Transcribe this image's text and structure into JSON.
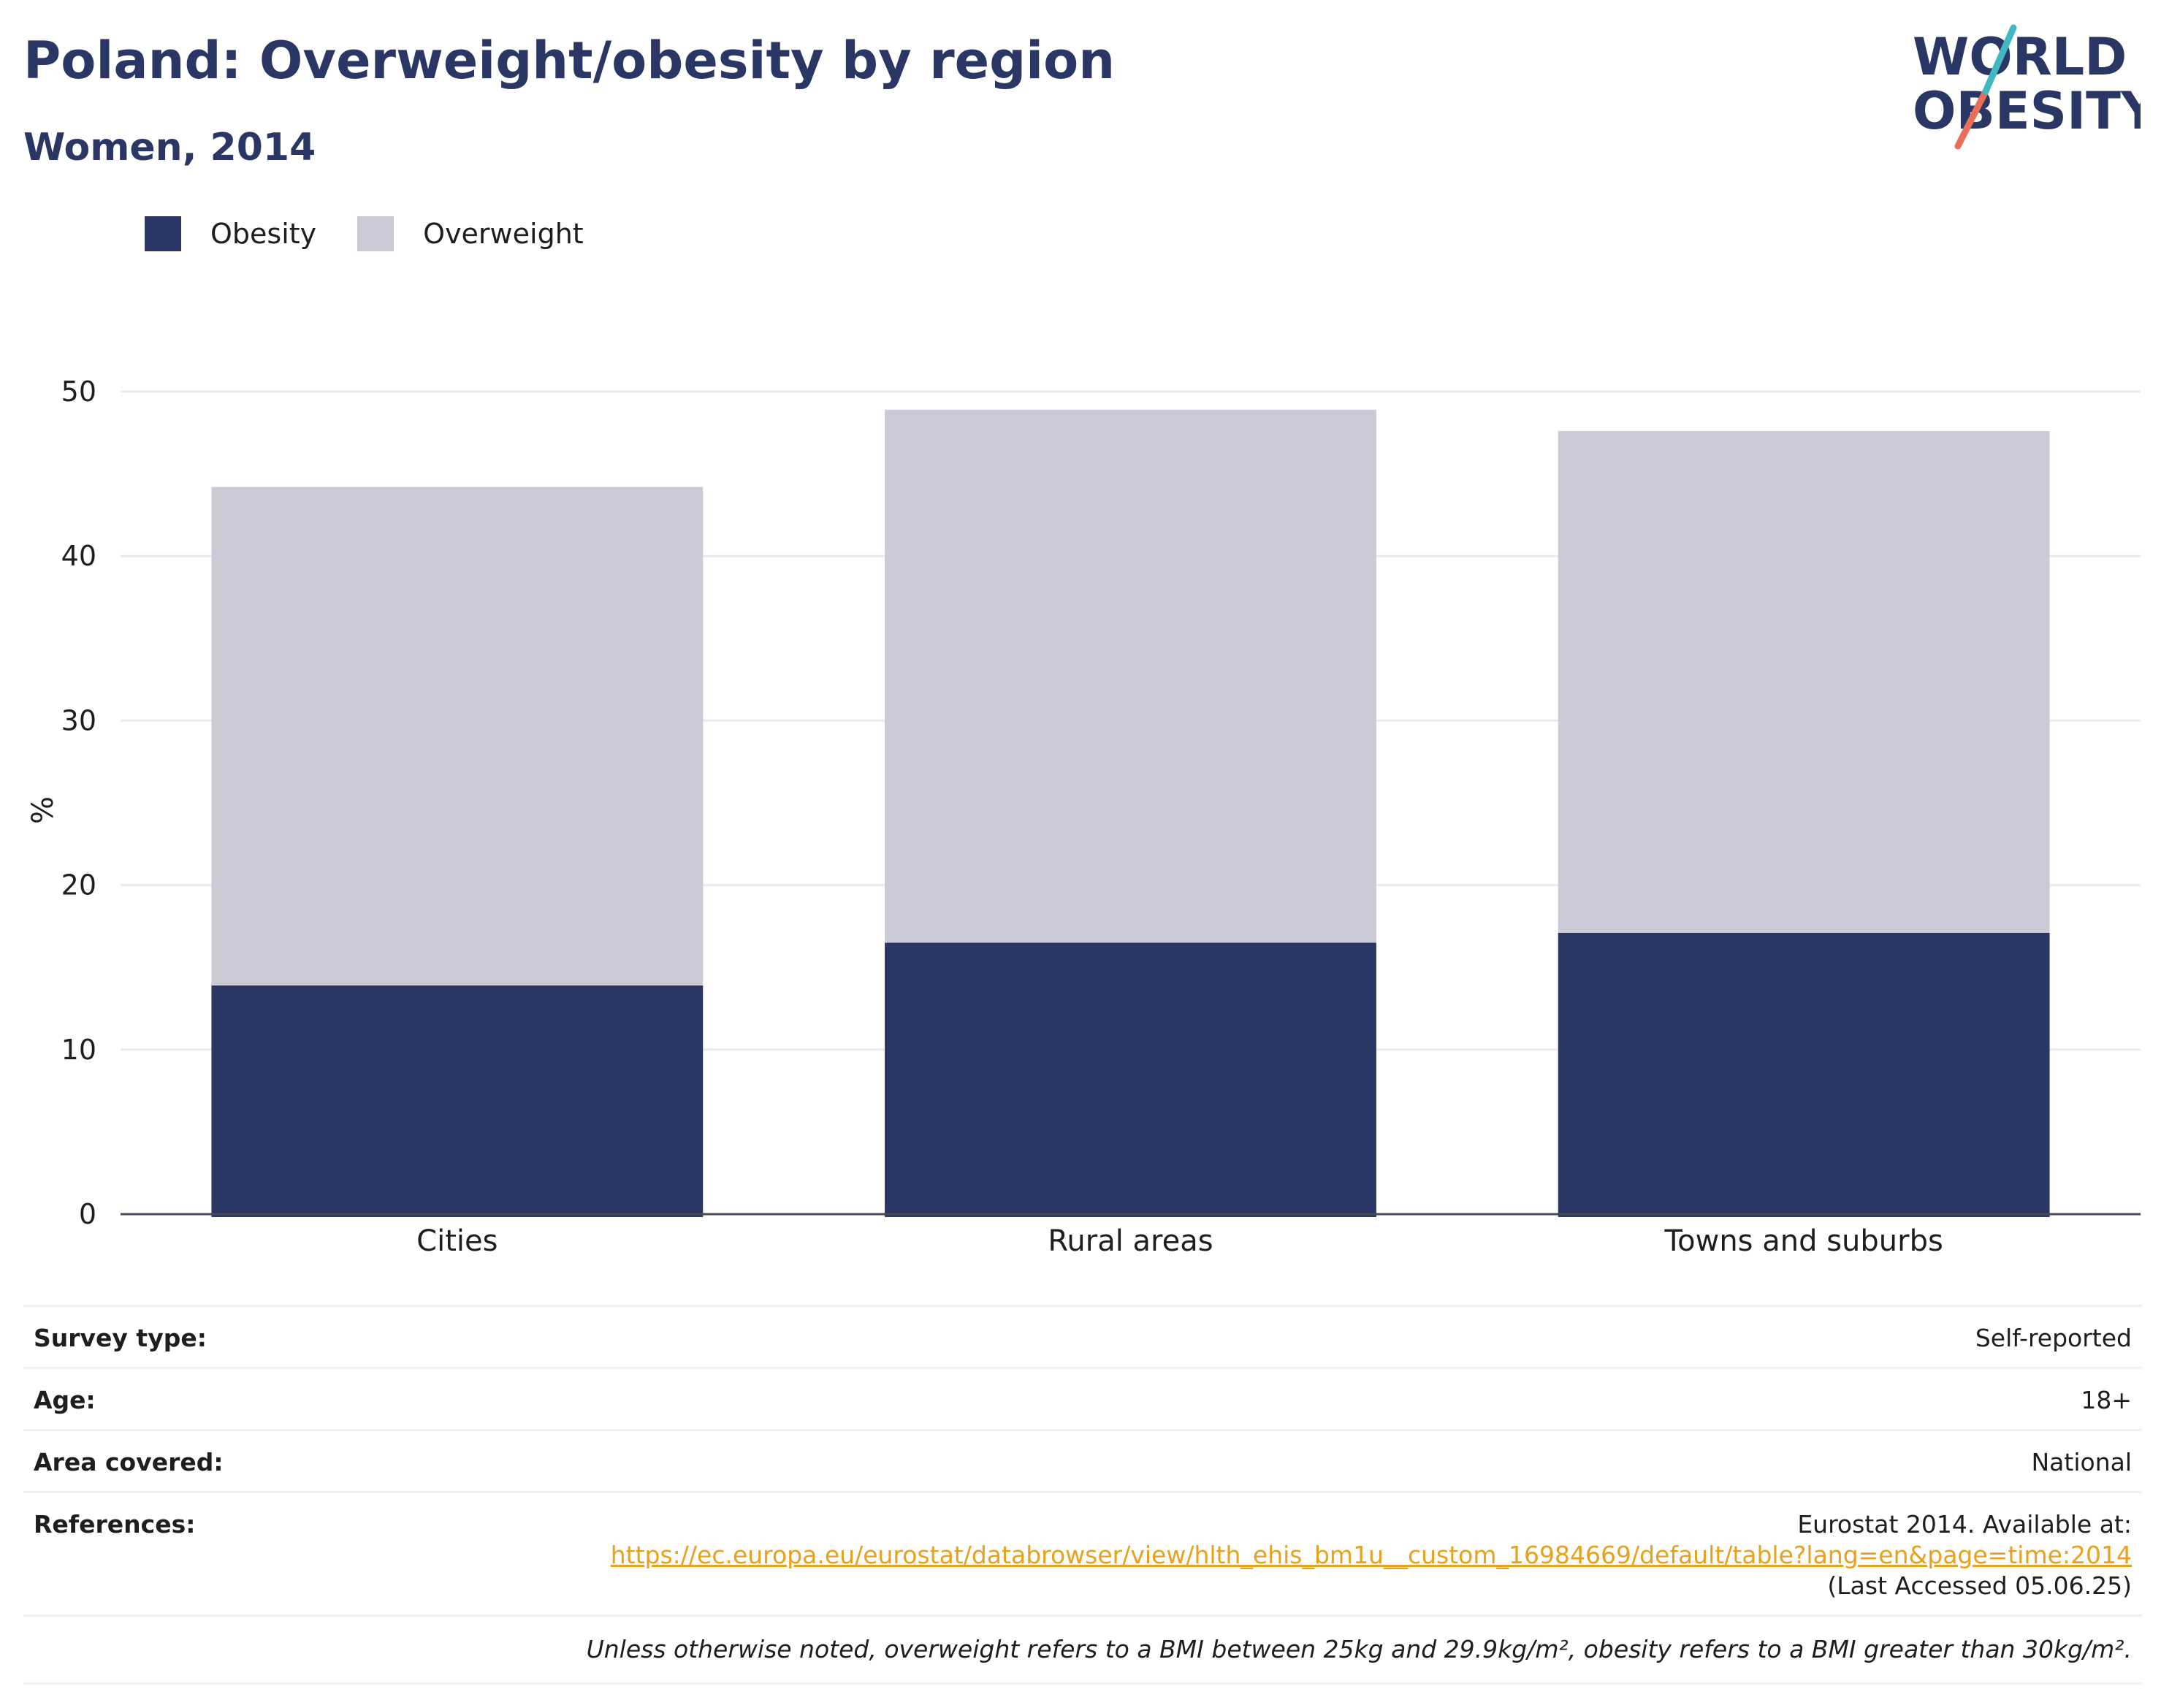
{
  "header": {
    "title": "Poland: Overweight/obesity by region",
    "subtitle": "Women, 2014"
  },
  "logo": {
    "line1": "WORLD",
    "line2": "OBESITY",
    "accent_colors": [
      "#40b7c3",
      "#e8705a"
    ]
  },
  "legend": [
    {
      "label": "Obesity",
      "color": "#2a3663"
    },
    {
      "label": "Overweight",
      "color": "#cacbd7"
    }
  ],
  "chart_data": {
    "type": "bar",
    "stacked": true,
    "categories": [
      "Cities",
      "Rural areas",
      "Towns and suburbs"
    ],
    "series": [
      {
        "name": "Obesity",
        "values": [
          13.9,
          16.5,
          17.1
        ],
        "color": "#2a3663"
      },
      {
        "name": "Overweight",
        "values": [
          30.3,
          32.4,
          30.5
        ],
        "color": "#cacbd7"
      }
    ],
    "title": "Poland: Overweight/obesity by region",
    "subtitle": "Women, 2014",
    "xlabel": "",
    "ylabel": "%",
    "ylim": [
      0,
      50
    ],
    "yticks": [
      0,
      10,
      20,
      30,
      40,
      50
    ],
    "grid": true,
    "legend_position": "top-left"
  },
  "meta": {
    "survey_type_label": "Survey type:",
    "survey_type_value": "Self-reported",
    "age_label": "Age:",
    "age_value": "18+",
    "area_label": "Area covered:",
    "area_value": "National",
    "references_label": "References:",
    "references_text_before": "Eurostat 2014. Available at:",
    "references_link": "https://ec.europa.eu/eurostat/databrowser/view/hlth_ehis_bm1u__custom_16984669/default/table?lang=en&page=time:2014",
    "references_text_after": "(Last Accessed 05.06.25)",
    "note": "Unless otherwise noted, overweight refers to a BMI between 25kg and 29.9kg/m², obesity refers to a BMI greater than 30kg/m²."
  }
}
